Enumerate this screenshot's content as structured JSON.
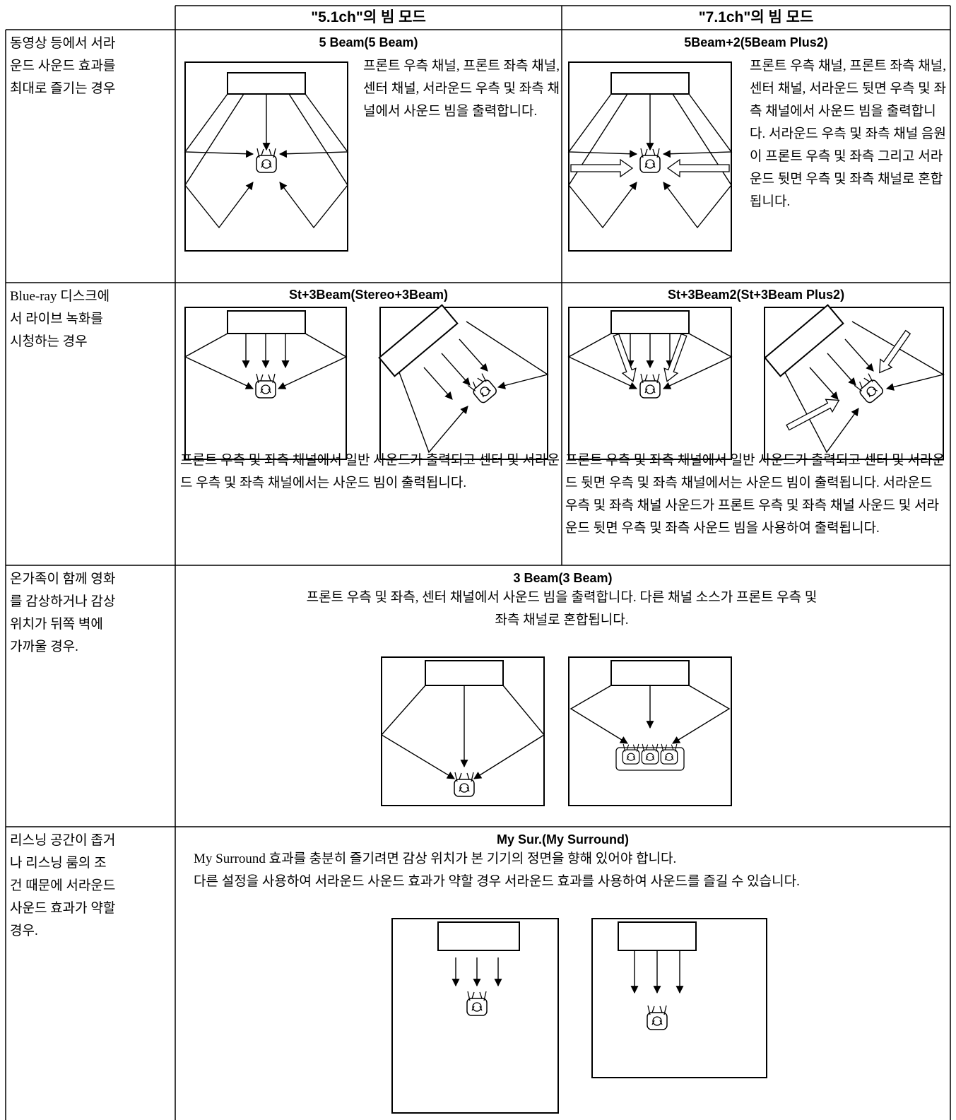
{
  "header": [
    "\"5.1ch\"의 빔 모드",
    "\"7.1ch\"의 빔 모드"
  ],
  "rows": [
    {
      "situation": "동영상 등에서 서라운드 사운드 효과를 최대로 즐기는 경우",
      "modes": [
        {
          "title": "5 Beam(5 Beam)",
          "description": "프론트 우측 채널, 프론트 좌측 채널, 센터 채널, 서라운드 우측 및 좌측 채널에서 사운드 빔을 출력합니다."
        },
        {
          "title": "5Beam+2(5Beam Plus2)",
          "description": "프론트 우측 채널, 프론트 좌측 채널, 센터 채널, 서라운드 뒷면 우측 및 좌측 채널에서 사운드 빔을 출력합니다. 서라운드 우측 및 좌측 채널 음원이 프론트 우측 및 좌측 그리고 서라운드 뒷면 우측 및 좌측 채널로 혼합됩니다."
        }
      ]
    },
    {
      "situation": "Blue-ray 디스크에서 라이브 녹화를 시청하는 경우",
      "modes": [
        {
          "title": "St+3Beam(Stereo+3Beam)",
          "description": "프론트 우측 및 좌측 채널에서 일반 사운드가 출력되고 센터 및 서라운드 우측 및 좌측 채널에서는 사운드 빔이 출력됩니다."
        },
        {
          "title": "St+3Beam2(St+3Beam Plus2)",
          "description": "프론트 우측 및 좌측 채널에서 일반 사운드가 출력되고 센터 및 서라운드 뒷면 우측 및 좌측 채널에서는 사운드 빔이 출력됩니다. 서라운드 우측 및 좌측 채널 사운드가 프론트 우측 및 좌측 채널 사운드 및 서라운드 뒷면 우측 및 좌측 사운드 빔을 사용하여 출력됩니다."
        }
      ]
    },
    {
      "situation": "온가족이 함께 영화를 감상하거나 감상 위치가 뒤쪽 벽에 가까울 경우.",
      "mode": {
        "title": "3 Beam(3 Beam)",
        "description": "프론트 우측 및 좌측, 센터 채널에서 사운드 빔을 출력합니다. 다른 채널 소스가 프론트 우측 및 좌측 채널로 혼합됩니다."
      }
    },
    {
      "situation": "리스닝 공간이 좁거나 리스닝 룸의 조건 때문에 서라운드 사운드 효과가 약할 경우.",
      "mode": {
        "title": "My Sur.(My Surround)",
        "paragraphs": [
          "My Surround 효과를 충분히 즐기려면 감상 위치가 본 기기의 정면을 향해 있어야 합니다.",
          "다른 설정을 사용하여 서라운드 사운드 효과가 약할 경우 서라운드 효과를 사용하여 사운드를 즐길 수 있습니다."
        ]
      }
    }
  ]
}
